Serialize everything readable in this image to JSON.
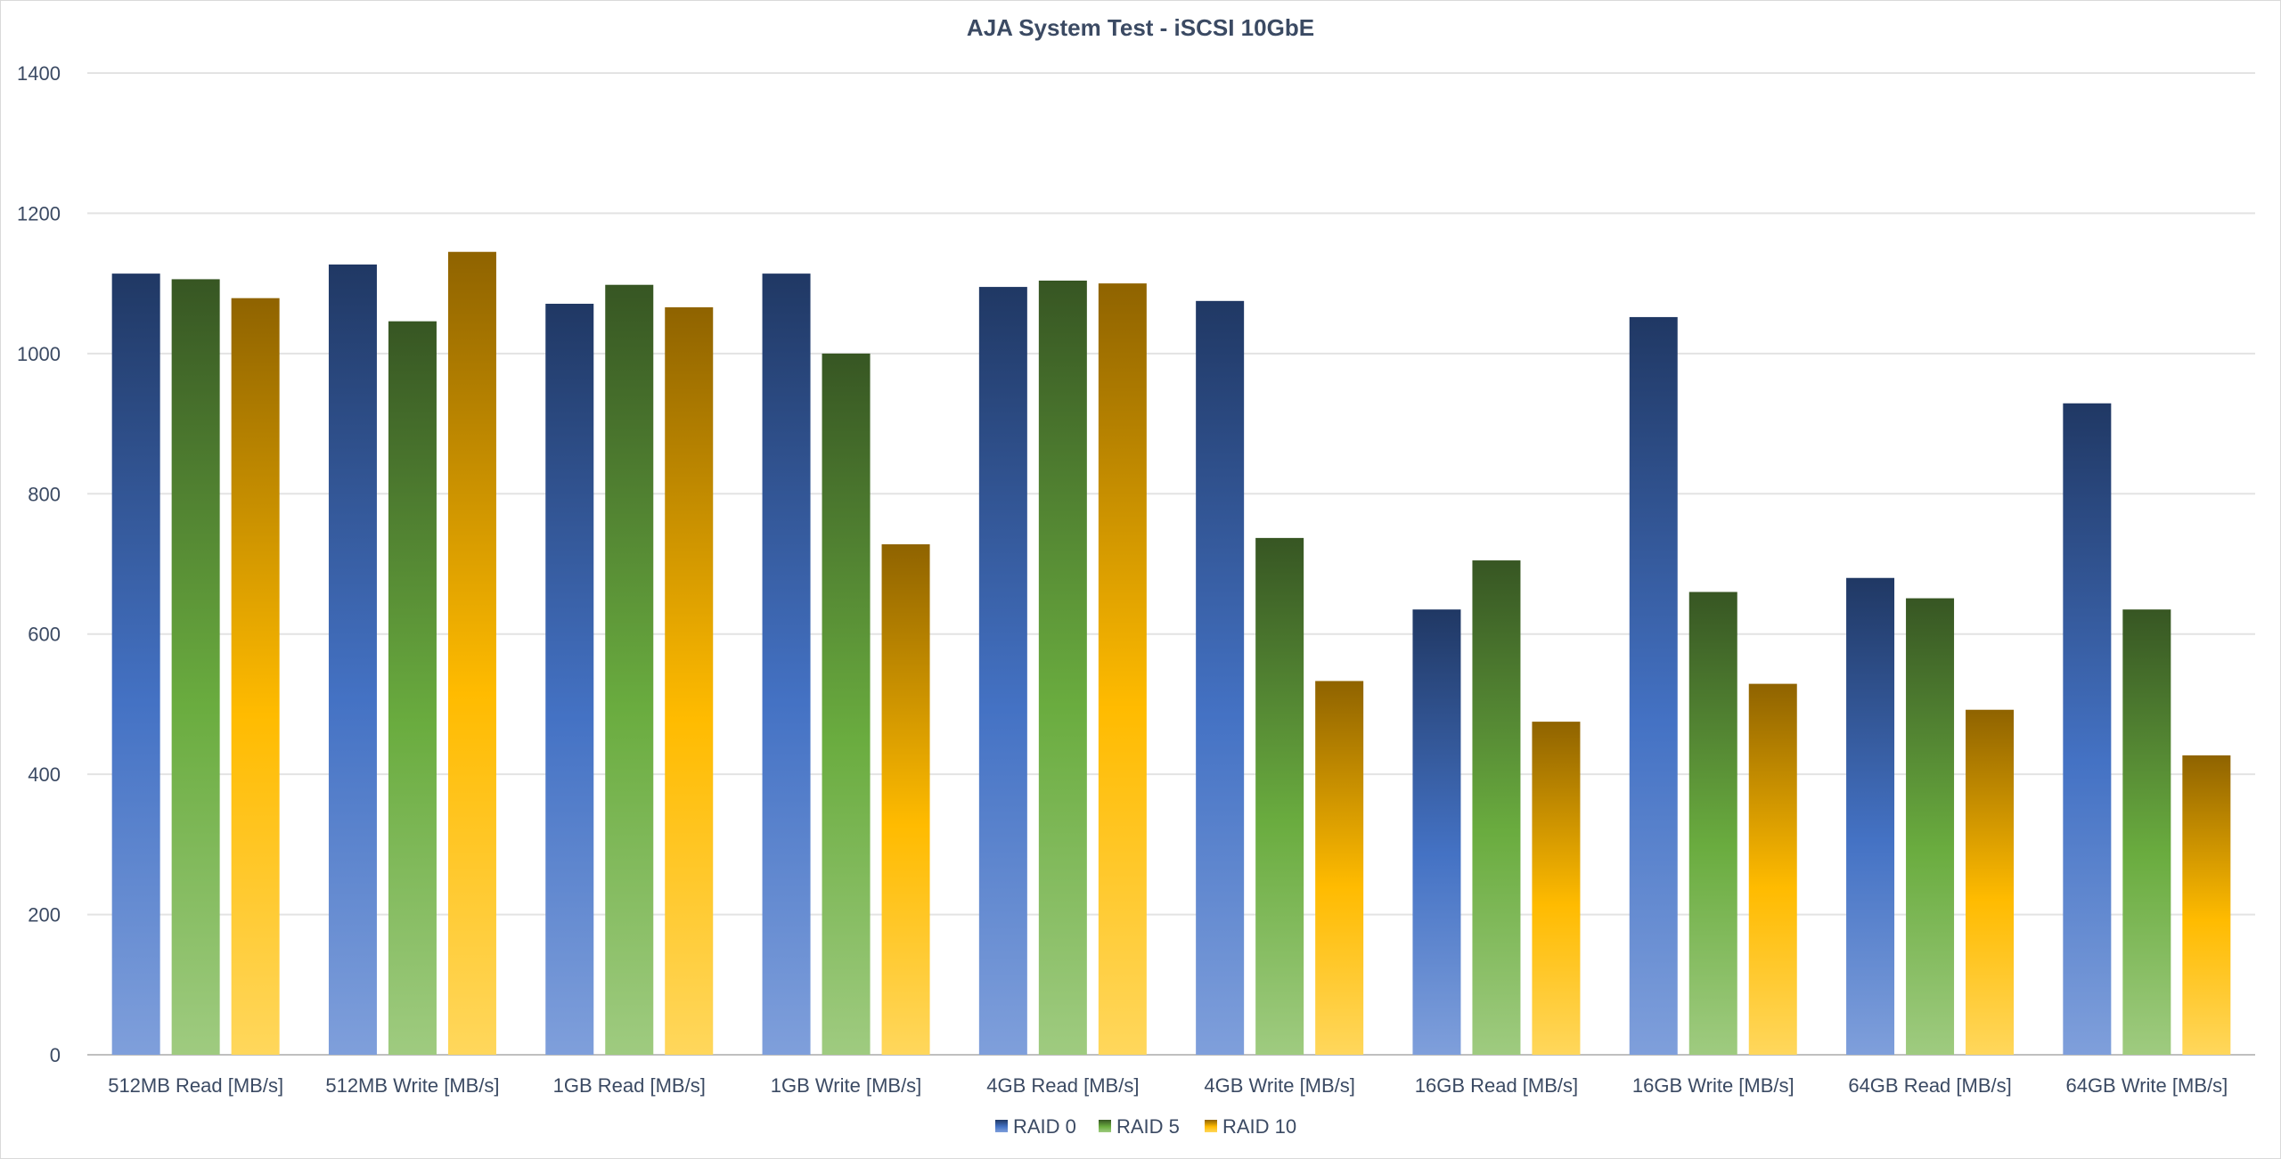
{
  "chart_data": {
    "type": "bar",
    "title": "AJA System Test - iSCSI 10GbE",
    "xlabel": "",
    "ylabel": "",
    "ylim": [
      0,
      1400
    ],
    "yticks": [
      0,
      200,
      400,
      600,
      800,
      1000,
      1200,
      1400
    ],
    "grid": true,
    "legend_position": "bottom",
    "categories": [
      "512MB Read [MB/s]",
      "512MB Write [MB/s]",
      "1GB Read [MB/s]",
      "1GB Write [MB/s]",
      "4GB Read [MB/s]",
      "4GB Write [MB/s]",
      "16GB Read [MB/s]",
      "16GB Write [MB/s]",
      "64GB Read [MB/s]",
      "64GB Write [MB/s]"
    ],
    "series": [
      {
        "name": "RAID 0",
        "color": "#4472c4",
        "values": [
          1114,
          1127,
          1071,
          1114,
          1095,
          1075,
          635,
          1052,
          680,
          929
        ]
      },
      {
        "name": "RAID 5",
        "color": "#70ad47",
        "values": [
          1106,
          1046,
          1098,
          1000,
          1104,
          737,
          705,
          660,
          651,
          635
        ]
      },
      {
        "name": "RAID 10",
        "color": "#ffc000",
        "values": [
          1079,
          1145,
          1066,
          728,
          1100,
          533,
          475,
          529,
          492,
          427
        ]
      }
    ]
  }
}
